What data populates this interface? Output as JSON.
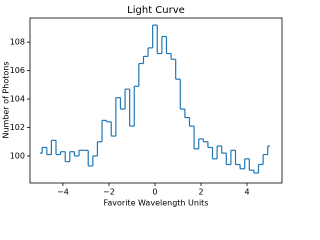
{
  "chart_data": {
    "type": "step",
    "title": "Light Curve",
    "x_label": "Favorite Wavelength Units",
    "y_label": "Number of Photons",
    "x": [
      -5,
      -4.8,
      -4.6,
      -4.4,
      -4.2,
      -4,
      -3.8,
      -3.6,
      -3.4,
      -3.2,
      -3,
      -2.8,
      -2.6,
      -2.4,
      -2.2,
      -2,
      -1.8,
      -1.6,
      -1.4,
      -1.2,
      -1,
      -0.8,
      -0.6,
      -0.4,
      -0.2,
      0,
      0.2,
      0.4,
      0.6,
      0.8,
      1,
      1.2,
      1.4,
      1.6,
      1.8,
      2,
      2.2,
      2.4,
      2.6,
      2.8,
      3,
      3.2,
      3.4,
      3.6,
      3.8,
      4,
      4.2,
      4.4,
      4.6,
      4.8,
      5
    ],
    "values": [
      100.2,
      100.6,
      100.1,
      101.1,
      100.1,
      100.3,
      99.6,
      100.3,
      100.0,
      100.4,
      100.4,
      99.3,
      100.0,
      101.0,
      102.5,
      102.4,
      101.4,
      104.1,
      103.3,
      104.7,
      102.1,
      104.9,
      106.5,
      107.0,
      107.6,
      109.2,
      107.2,
      108.4,
      107.2,
      106.8,
      105.4,
      103.3,
      102.7,
      102.1,
      100.5,
      101.2,
      101.0,
      100.6,
      99.8,
      100.7,
      100.2,
      99.4,
      100.4,
      99.4,
      99.1,
      99.8,
      99.0,
      98.8,
      99.4,
      100.1,
      100.7
    ],
    "color": "#1f77b4",
    "xlim": [
      -5.43,
      5.52
    ],
    "xticks": [
      {
        "value": -4,
        "label": "−4"
      },
      {
        "value": -2,
        "label": "−2"
      },
      0,
      2,
      4
    ],
    "ylim": [
      98.1,
      109.7
    ],
    "yticks": [
      100,
      102,
      104,
      106,
      108
    ]
  }
}
